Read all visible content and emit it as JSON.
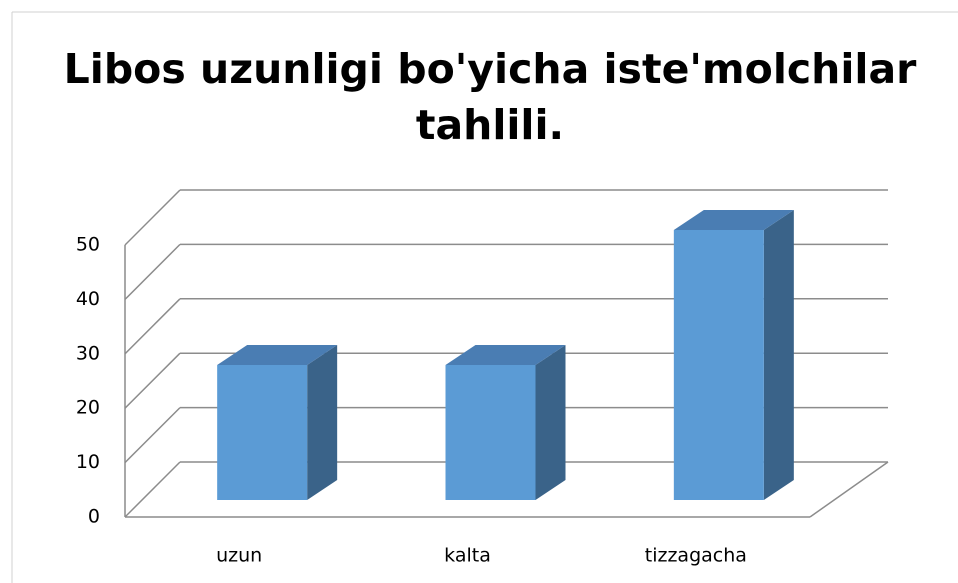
{
  "chart_data": {
    "type": "bar3d",
    "title": "Libos uzunligi bo'yicha iste'molchilar tahlili.",
    "categories": [
      "uzun",
      "kalta",
      "tizzagacha"
    ],
    "values": [
      25,
      25,
      50
    ],
    "color": "#5b9bd5",
    "ylim": [
      0,
      50
    ],
    "yticks": [
      0,
      10,
      20,
      30,
      40,
      50
    ],
    "grid": true
  }
}
